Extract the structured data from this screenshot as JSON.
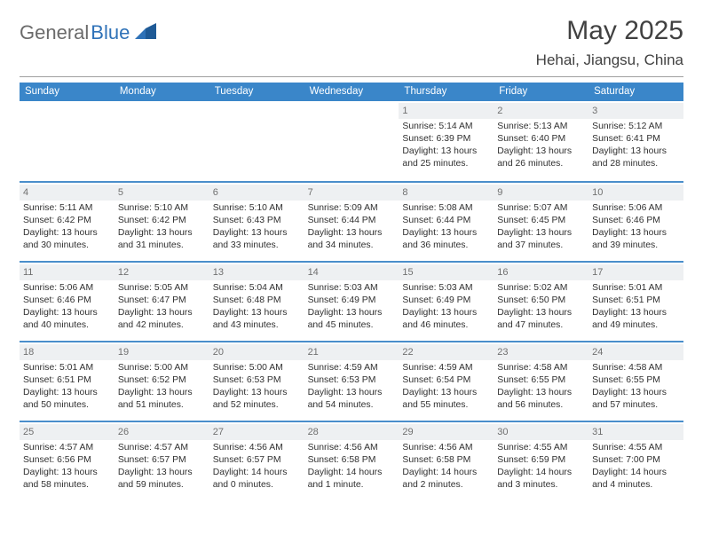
{
  "brand": {
    "part1": "General",
    "part2": "Blue"
  },
  "title": "May 2025",
  "location": "Hehai, Jiangsu, China",
  "colors": {
    "header_bar": "#3a86c9",
    "row_rule": "#4a8ecb",
    "day_band": "#eef0f2",
    "logo_gray": "#6b6b6b",
    "logo_blue": "#2f72b8",
    "text": "#303030"
  },
  "weekdays": [
    "Sunday",
    "Monday",
    "Tuesday",
    "Wednesday",
    "Thursday",
    "Friday",
    "Saturday"
  ],
  "layout": {
    "cols": 7,
    "rows": 5,
    "first_day_col": 4
  },
  "days": [
    {
      "n": 1,
      "sunrise": "5:14 AM",
      "sunset": "6:39 PM",
      "dl": "13 hours and 25 minutes."
    },
    {
      "n": 2,
      "sunrise": "5:13 AM",
      "sunset": "6:40 PM",
      "dl": "13 hours and 26 minutes."
    },
    {
      "n": 3,
      "sunrise": "5:12 AM",
      "sunset": "6:41 PM",
      "dl": "13 hours and 28 minutes."
    },
    {
      "n": 4,
      "sunrise": "5:11 AM",
      "sunset": "6:42 PM",
      "dl": "13 hours and 30 minutes."
    },
    {
      "n": 5,
      "sunrise": "5:10 AM",
      "sunset": "6:42 PM",
      "dl": "13 hours and 31 minutes."
    },
    {
      "n": 6,
      "sunrise": "5:10 AM",
      "sunset": "6:43 PM",
      "dl": "13 hours and 33 minutes."
    },
    {
      "n": 7,
      "sunrise": "5:09 AM",
      "sunset": "6:44 PM",
      "dl": "13 hours and 34 minutes."
    },
    {
      "n": 8,
      "sunrise": "5:08 AM",
      "sunset": "6:44 PM",
      "dl": "13 hours and 36 minutes."
    },
    {
      "n": 9,
      "sunrise": "5:07 AM",
      "sunset": "6:45 PM",
      "dl": "13 hours and 37 minutes."
    },
    {
      "n": 10,
      "sunrise": "5:06 AM",
      "sunset": "6:46 PM",
      "dl": "13 hours and 39 minutes."
    },
    {
      "n": 11,
      "sunrise": "5:06 AM",
      "sunset": "6:46 PM",
      "dl": "13 hours and 40 minutes."
    },
    {
      "n": 12,
      "sunrise": "5:05 AM",
      "sunset": "6:47 PM",
      "dl": "13 hours and 42 minutes."
    },
    {
      "n": 13,
      "sunrise": "5:04 AM",
      "sunset": "6:48 PM",
      "dl": "13 hours and 43 minutes."
    },
    {
      "n": 14,
      "sunrise": "5:03 AM",
      "sunset": "6:49 PM",
      "dl": "13 hours and 45 minutes."
    },
    {
      "n": 15,
      "sunrise": "5:03 AM",
      "sunset": "6:49 PM",
      "dl": "13 hours and 46 minutes."
    },
    {
      "n": 16,
      "sunrise": "5:02 AM",
      "sunset": "6:50 PM",
      "dl": "13 hours and 47 minutes."
    },
    {
      "n": 17,
      "sunrise": "5:01 AM",
      "sunset": "6:51 PM",
      "dl": "13 hours and 49 minutes."
    },
    {
      "n": 18,
      "sunrise": "5:01 AM",
      "sunset": "6:51 PM",
      "dl": "13 hours and 50 minutes."
    },
    {
      "n": 19,
      "sunrise": "5:00 AM",
      "sunset": "6:52 PM",
      "dl": "13 hours and 51 minutes."
    },
    {
      "n": 20,
      "sunrise": "5:00 AM",
      "sunset": "6:53 PM",
      "dl": "13 hours and 52 minutes."
    },
    {
      "n": 21,
      "sunrise": "4:59 AM",
      "sunset": "6:53 PM",
      "dl": "13 hours and 54 minutes."
    },
    {
      "n": 22,
      "sunrise": "4:59 AM",
      "sunset": "6:54 PM",
      "dl": "13 hours and 55 minutes."
    },
    {
      "n": 23,
      "sunrise": "4:58 AM",
      "sunset": "6:55 PM",
      "dl": "13 hours and 56 minutes."
    },
    {
      "n": 24,
      "sunrise": "4:58 AM",
      "sunset": "6:55 PM",
      "dl": "13 hours and 57 minutes."
    },
    {
      "n": 25,
      "sunrise": "4:57 AM",
      "sunset": "6:56 PM",
      "dl": "13 hours and 58 minutes."
    },
    {
      "n": 26,
      "sunrise": "4:57 AM",
      "sunset": "6:57 PM",
      "dl": "13 hours and 59 minutes."
    },
    {
      "n": 27,
      "sunrise": "4:56 AM",
      "sunset": "6:57 PM",
      "dl": "14 hours and 0 minutes."
    },
    {
      "n": 28,
      "sunrise": "4:56 AM",
      "sunset": "6:58 PM",
      "dl": "14 hours and 1 minute."
    },
    {
      "n": 29,
      "sunrise": "4:56 AM",
      "sunset": "6:58 PM",
      "dl": "14 hours and 2 minutes."
    },
    {
      "n": 30,
      "sunrise": "4:55 AM",
      "sunset": "6:59 PM",
      "dl": "14 hours and 3 minutes."
    },
    {
      "n": 31,
      "sunrise": "4:55 AM",
      "sunset": "7:00 PM",
      "dl": "14 hours and 4 minutes."
    }
  ],
  "labels": {
    "sunrise": "Sunrise:",
    "sunset": "Sunset:",
    "daylight": "Daylight:"
  }
}
